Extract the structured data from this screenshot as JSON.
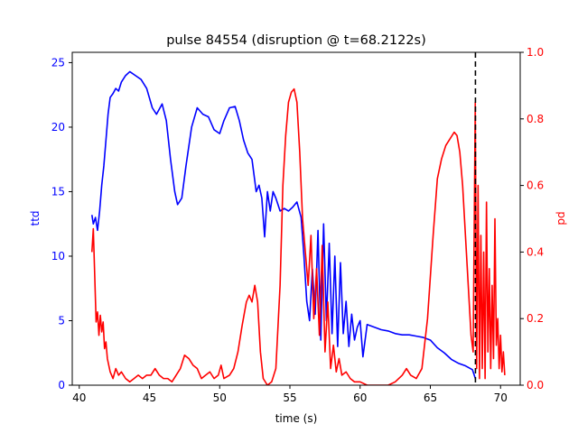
{
  "chart_data": {
    "type": "line",
    "title": "pulse 84554 (disruption @ t=68.2122s)",
    "xlabel": "time (s)",
    "ylabel_left": "ttd",
    "ylabel_right": "pd",
    "xlim": [
      39.5,
      71.4
    ],
    "ylim_left": [
      0,
      25.8
    ],
    "ylim_right": [
      0,
      1.0
    ],
    "x_ticks": [
      40,
      45,
      50,
      55,
      60,
      65,
      70
    ],
    "y_ticks_left": [
      0,
      5,
      10,
      15,
      20,
      25
    ],
    "y_ticks_right": [
      "0.0",
      "0.2",
      "0.4",
      "0.6",
      "0.8",
      "1.0"
    ],
    "disruption_time": 68.2122,
    "colors": {
      "ttd": "#0000ff",
      "pd": "#ff0000",
      "disruption_line": "#000000",
      "axes": "#000000"
    },
    "series": [
      {
        "axis": "left",
        "color": "#0000ff",
        "points": [
          [
            40.9,
            13.2
          ],
          [
            41.0,
            12.5
          ],
          [
            41.15,
            13.0
          ],
          [
            41.3,
            12.0
          ],
          [
            41.45,
            13.5
          ],
          [
            41.6,
            15.5
          ],
          [
            41.75,
            17.0
          ],
          [
            41.9,
            19.0
          ],
          [
            42.05,
            21.0
          ],
          [
            42.2,
            22.3
          ],
          [
            42.4,
            22.6
          ],
          [
            42.6,
            23.0
          ],
          [
            42.8,
            22.8
          ],
          [
            43.0,
            23.5
          ],
          [
            43.3,
            24.0
          ],
          [
            43.6,
            24.3
          ],
          [
            44.0,
            24.0
          ],
          [
            44.4,
            23.7
          ],
          [
            44.8,
            23.0
          ],
          [
            45.2,
            21.5
          ],
          [
            45.5,
            21.0
          ],
          [
            45.9,
            21.8
          ],
          [
            46.2,
            20.5
          ],
          [
            46.5,
            17.5
          ],
          [
            46.8,
            15.0
          ],
          [
            47.0,
            14.0
          ],
          [
            47.3,
            14.5
          ],
          [
            47.6,
            17.0
          ],
          [
            48.0,
            20.0
          ],
          [
            48.4,
            21.5
          ],
          [
            48.8,
            21.0
          ],
          [
            49.2,
            20.8
          ],
          [
            49.6,
            19.8
          ],
          [
            50.0,
            19.5
          ],
          [
            50.3,
            20.5
          ],
          [
            50.7,
            21.5
          ],
          [
            51.1,
            21.6
          ],
          [
            51.4,
            20.5
          ],
          [
            51.7,
            19.0
          ],
          [
            52.0,
            18.0
          ],
          [
            52.3,
            17.5
          ],
          [
            52.6,
            15.0
          ],
          [
            52.8,
            15.5
          ],
          [
            53.0,
            14.5
          ],
          [
            53.2,
            11.5
          ],
          [
            53.4,
            15.0
          ],
          [
            53.6,
            13.5
          ],
          [
            53.8,
            15.0
          ],
          [
            54.0,
            14.5
          ],
          [
            54.3,
            13.5
          ],
          [
            54.6,
            13.7
          ],
          [
            54.9,
            13.5
          ],
          [
            55.2,
            13.8
          ],
          [
            55.5,
            14.2
          ],
          [
            55.8,
            13.0
          ],
          [
            56.0,
            10.0
          ],
          [
            56.2,
            6.5
          ],
          [
            56.4,
            5.0
          ],
          [
            56.6,
            9.0
          ],
          [
            56.8,
            5.5
          ],
          [
            57.0,
            12.0
          ],
          [
            57.2,
            3.5
          ],
          [
            57.4,
            12.5
          ],
          [
            57.6,
            5.0
          ],
          [
            57.8,
            11.0
          ],
          [
            58.0,
            4.0
          ],
          [
            58.2,
            10.0
          ],
          [
            58.4,
            3.0
          ],
          [
            58.6,
            9.5
          ],
          [
            58.8,
            4.0
          ],
          [
            59.0,
            6.5
          ],
          [
            59.2,
            3.0
          ],
          [
            59.4,
            5.5
          ],
          [
            59.6,
            3.5
          ],
          [
            59.8,
            4.5
          ],
          [
            60.0,
            5.0
          ],
          [
            60.2,
            2.2
          ],
          [
            60.5,
            4.7
          ],
          [
            61.0,
            4.5
          ],
          [
            61.5,
            4.3
          ],
          [
            62.0,
            4.2
          ],
          [
            62.5,
            4.0
          ],
          [
            63.0,
            3.9
          ],
          [
            63.5,
            3.9
          ],
          [
            64.0,
            3.8
          ],
          [
            64.5,
            3.7
          ],
          [
            65.0,
            3.5
          ],
          [
            65.5,
            2.9
          ],
          [
            66.0,
            2.5
          ],
          [
            66.5,
            2.0
          ],
          [
            67.0,
            1.7
          ],
          [
            67.5,
            1.5
          ],
          [
            68.0,
            1.2
          ],
          [
            68.2122,
            0.5
          ]
        ]
      },
      {
        "axis": "right",
        "color": "#ff0000",
        "points": [
          [
            40.9,
            0.4
          ],
          [
            41.0,
            0.47
          ],
          [
            41.1,
            0.33
          ],
          [
            41.2,
            0.19
          ],
          [
            41.3,
            0.22
          ],
          [
            41.4,
            0.15
          ],
          [
            41.5,
            0.21
          ],
          [
            41.6,
            0.16
          ],
          [
            41.7,
            0.19
          ],
          [
            41.8,
            0.11
          ],
          [
            41.9,
            0.13
          ],
          [
            42.0,
            0.08
          ],
          [
            42.2,
            0.04
          ],
          [
            42.4,
            0.02
          ],
          [
            42.6,
            0.05
          ],
          [
            42.8,
            0.03
          ],
          [
            43.0,
            0.04
          ],
          [
            43.3,
            0.02
          ],
          [
            43.6,
            0.01
          ],
          [
            43.9,
            0.02
          ],
          [
            44.2,
            0.03
          ],
          [
            44.5,
            0.02
          ],
          [
            44.8,
            0.03
          ],
          [
            45.1,
            0.03
          ],
          [
            45.4,
            0.05
          ],
          [
            45.7,
            0.03
          ],
          [
            46.0,
            0.02
          ],
          [
            46.3,
            0.02
          ],
          [
            46.6,
            0.01
          ],
          [
            46.9,
            0.03
          ],
          [
            47.2,
            0.05
          ],
          [
            47.5,
            0.09
          ],
          [
            47.8,
            0.08
          ],
          [
            48.1,
            0.06
          ],
          [
            48.4,
            0.05
          ],
          [
            48.7,
            0.02
          ],
          [
            49.0,
            0.03
          ],
          [
            49.3,
            0.04
          ],
          [
            49.6,
            0.02
          ],
          [
            49.9,
            0.03
          ],
          [
            50.1,
            0.06
          ],
          [
            50.3,
            0.02
          ],
          [
            50.7,
            0.03
          ],
          [
            51.0,
            0.05
          ],
          [
            51.3,
            0.1
          ],
          [
            51.6,
            0.18
          ],
          [
            51.9,
            0.25
          ],
          [
            52.1,
            0.27
          ],
          [
            52.3,
            0.25
          ],
          [
            52.5,
            0.3
          ],
          [
            52.7,
            0.25
          ],
          [
            52.9,
            0.1
          ],
          [
            53.1,
            0.02
          ],
          [
            53.4,
            0.0
          ],
          [
            53.7,
            0.01
          ],
          [
            54.0,
            0.05
          ],
          [
            54.3,
            0.3
          ],
          [
            54.5,
            0.6
          ],
          [
            54.7,
            0.75
          ],
          [
            54.9,
            0.85
          ],
          [
            55.1,
            0.88
          ],
          [
            55.3,
            0.89
          ],
          [
            55.5,
            0.85
          ],
          [
            55.7,
            0.7
          ],
          [
            55.9,
            0.5
          ],
          [
            56.1,
            0.4
          ],
          [
            56.3,
            0.3
          ],
          [
            56.5,
            0.45
          ],
          [
            56.7,
            0.2
          ],
          [
            56.9,
            0.35
          ],
          [
            57.1,
            0.15
          ],
          [
            57.3,
            0.42
          ],
          [
            57.5,
            0.1
          ],
          [
            57.7,
            0.25
          ],
          [
            57.9,
            0.05
          ],
          [
            58.1,
            0.12
          ],
          [
            58.3,
            0.04
          ],
          [
            58.5,
            0.08
          ],
          [
            58.7,
            0.03
          ],
          [
            59.0,
            0.04
          ],
          [
            59.3,
            0.02
          ],
          [
            59.6,
            0.01
          ],
          [
            60.0,
            0.01
          ],
          [
            60.5,
            0.0
          ],
          [
            61.0,
            0.0
          ],
          [
            61.5,
            0.0
          ],
          [
            62.0,
            0.0
          ],
          [
            62.5,
            0.01
          ],
          [
            63.0,
            0.03
          ],
          [
            63.3,
            0.05
          ],
          [
            63.6,
            0.03
          ],
          [
            64.0,
            0.02
          ],
          [
            64.4,
            0.05
          ],
          [
            64.8,
            0.2
          ],
          [
            65.2,
            0.45
          ],
          [
            65.5,
            0.62
          ],
          [
            65.8,
            0.68
          ],
          [
            66.1,
            0.72
          ],
          [
            66.4,
            0.74
          ],
          [
            66.7,
            0.76
          ],
          [
            66.9,
            0.75
          ],
          [
            67.1,
            0.7
          ],
          [
            67.3,
            0.6
          ],
          [
            67.5,
            0.45
          ],
          [
            67.7,
            0.3
          ],
          [
            67.9,
            0.15
          ],
          [
            68.05,
            0.1
          ],
          [
            68.2,
            0.85
          ],
          [
            68.3,
            0.05
          ],
          [
            68.4,
            0.6
          ],
          [
            68.5,
            0.02
          ],
          [
            68.6,
            0.45
          ],
          [
            68.7,
            0.05
          ],
          [
            68.8,
            0.4
          ],
          [
            68.9,
            0.02
          ],
          [
            69.0,
            0.55
          ],
          [
            69.1,
            0.1
          ],
          [
            69.2,
            0.35
          ],
          [
            69.3,
            0.05
          ],
          [
            69.4,
            0.3
          ],
          [
            69.5,
            0.08
          ],
          [
            69.6,
            0.5
          ],
          [
            69.7,
            0.12
          ],
          [
            69.8,
            0.2
          ],
          [
            69.9,
            0.05
          ],
          [
            70.0,
            0.15
          ],
          [
            70.1,
            0.04
          ],
          [
            70.2,
            0.1
          ],
          [
            70.3,
            0.03
          ]
        ]
      }
    ]
  }
}
